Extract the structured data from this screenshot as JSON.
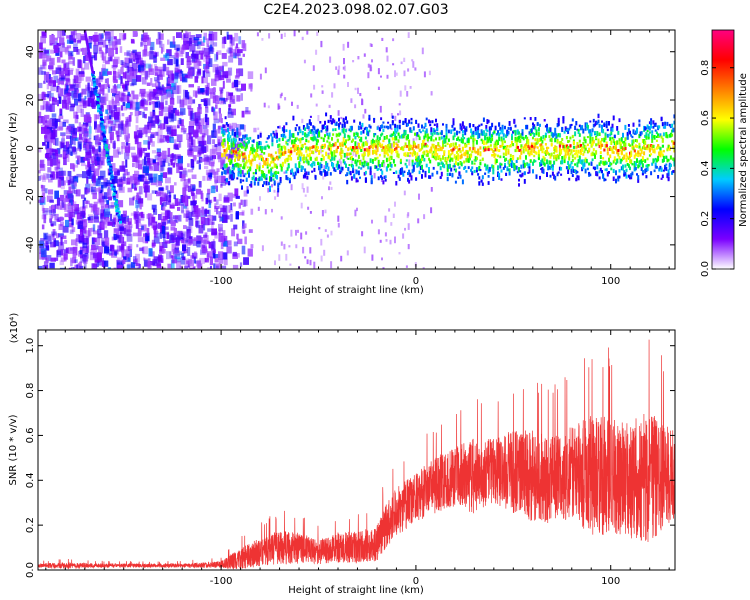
{
  "title": "C2E4.2023.098.02.07.G03",
  "chart_data": [
    {
      "type": "heatmap",
      "xlabel": "Height of straight line (km)",
      "ylabel": "Frequency (Hz)",
      "xlim": [
        -194,
        133
      ],
      "ylim": [
        -50,
        49
      ],
      "xticks": [
        -100,
        0,
        100
      ],
      "yticks": [
        -40,
        -20,
        0,
        20,
        40
      ],
      "colorbar": {
        "label": "Normalized spectral amplitude",
        "range": [
          0,
          0.95
        ],
        "ticks": [
          "0.0",
          "0.2",
          "0.4",
          "0.6",
          "0.8"
        ],
        "colors": [
          "#ffffff",
          "#7a00ff",
          "#0000ff",
          "#00ccff",
          "#00ff00",
          "#ffff00",
          "#ff7f00",
          "#ff0000",
          "#ff0080"
        ]
      },
      "features": {
        "noise_region_x": [
          -194,
          -82
        ],
        "diagonal_track": [
          [
            -166,
            32
          ],
          [
            -152,
            -30
          ]
        ],
        "signal_band": [
          [
            -100,
            0
          ],
          [
            -90,
            -3
          ],
          [
            -80,
            -5
          ],
          [
            -70,
            -3
          ],
          [
            -60,
            1
          ],
          [
            -50,
            0
          ],
          [
            -40,
            1
          ],
          [
            -30,
            0
          ],
          [
            -20,
            0
          ],
          [
            -10,
            0
          ],
          [
            0,
            1
          ],
          [
            10,
            0
          ],
          [
            20,
            -1
          ],
          [
            30,
            -1
          ],
          [
            40,
            0
          ],
          [
            50,
            0
          ],
          [
            60,
            1
          ],
          [
            70,
            0
          ],
          [
            80,
            0
          ],
          [
            90,
            1
          ],
          [
            100,
            0
          ],
          [
            110,
            -1
          ],
          [
            120,
            0
          ],
          [
            133,
            2
          ]
        ]
      }
    },
    {
      "type": "line",
      "xlabel": "Height of straight line (km)",
      "ylabel": "SNR (10 * v/v)",
      "yexponent": "(x10⁴)",
      "xlim": [
        -194,
        133
      ],
      "ylim": [
        0,
        1.07
      ],
      "xticks": [
        -100,
        0,
        100
      ],
      "yticks": [
        "0.0",
        "0.2",
        "0.4",
        "0.6",
        "0.8",
        "1.0"
      ],
      "color": "#ee3333",
      "series": [
        {
          "x": [
            -194,
            -180,
            -160,
            -140,
            -120,
            -100,
            -90,
            -80,
            -70,
            -60,
            -50,
            -40,
            -30,
            -20,
            -15,
            -10,
            0,
            10,
            20,
            30,
            40,
            50,
            60,
            70,
            80,
            90,
            100,
            110,
            120,
            133
          ],
          "mean": [
            0.02,
            0.02,
            0.02,
            0.02,
            0.02,
            0.025,
            0.05,
            0.08,
            0.1,
            0.1,
            0.08,
            0.1,
            0.1,
            0.12,
            0.2,
            0.26,
            0.32,
            0.38,
            0.42,
            0.42,
            0.44,
            0.44,
            0.42,
            0.4,
            0.44,
            0.42,
            0.42,
            0.4,
            0.42,
            0.42
          ],
          "peak": [
            0.04,
            0.05,
            0.04,
            0.04,
            0.04,
            0.06,
            0.16,
            0.22,
            0.27,
            0.26,
            0.2,
            0.25,
            0.26,
            0.3,
            0.42,
            0.5,
            0.57,
            0.66,
            0.72,
            0.8,
            0.76,
            0.86,
            0.88,
            0.84,
            0.9,
            1.02,
            1.0,
            0.98,
            1.08,
            0.85
          ]
        }
      ]
    }
  ]
}
